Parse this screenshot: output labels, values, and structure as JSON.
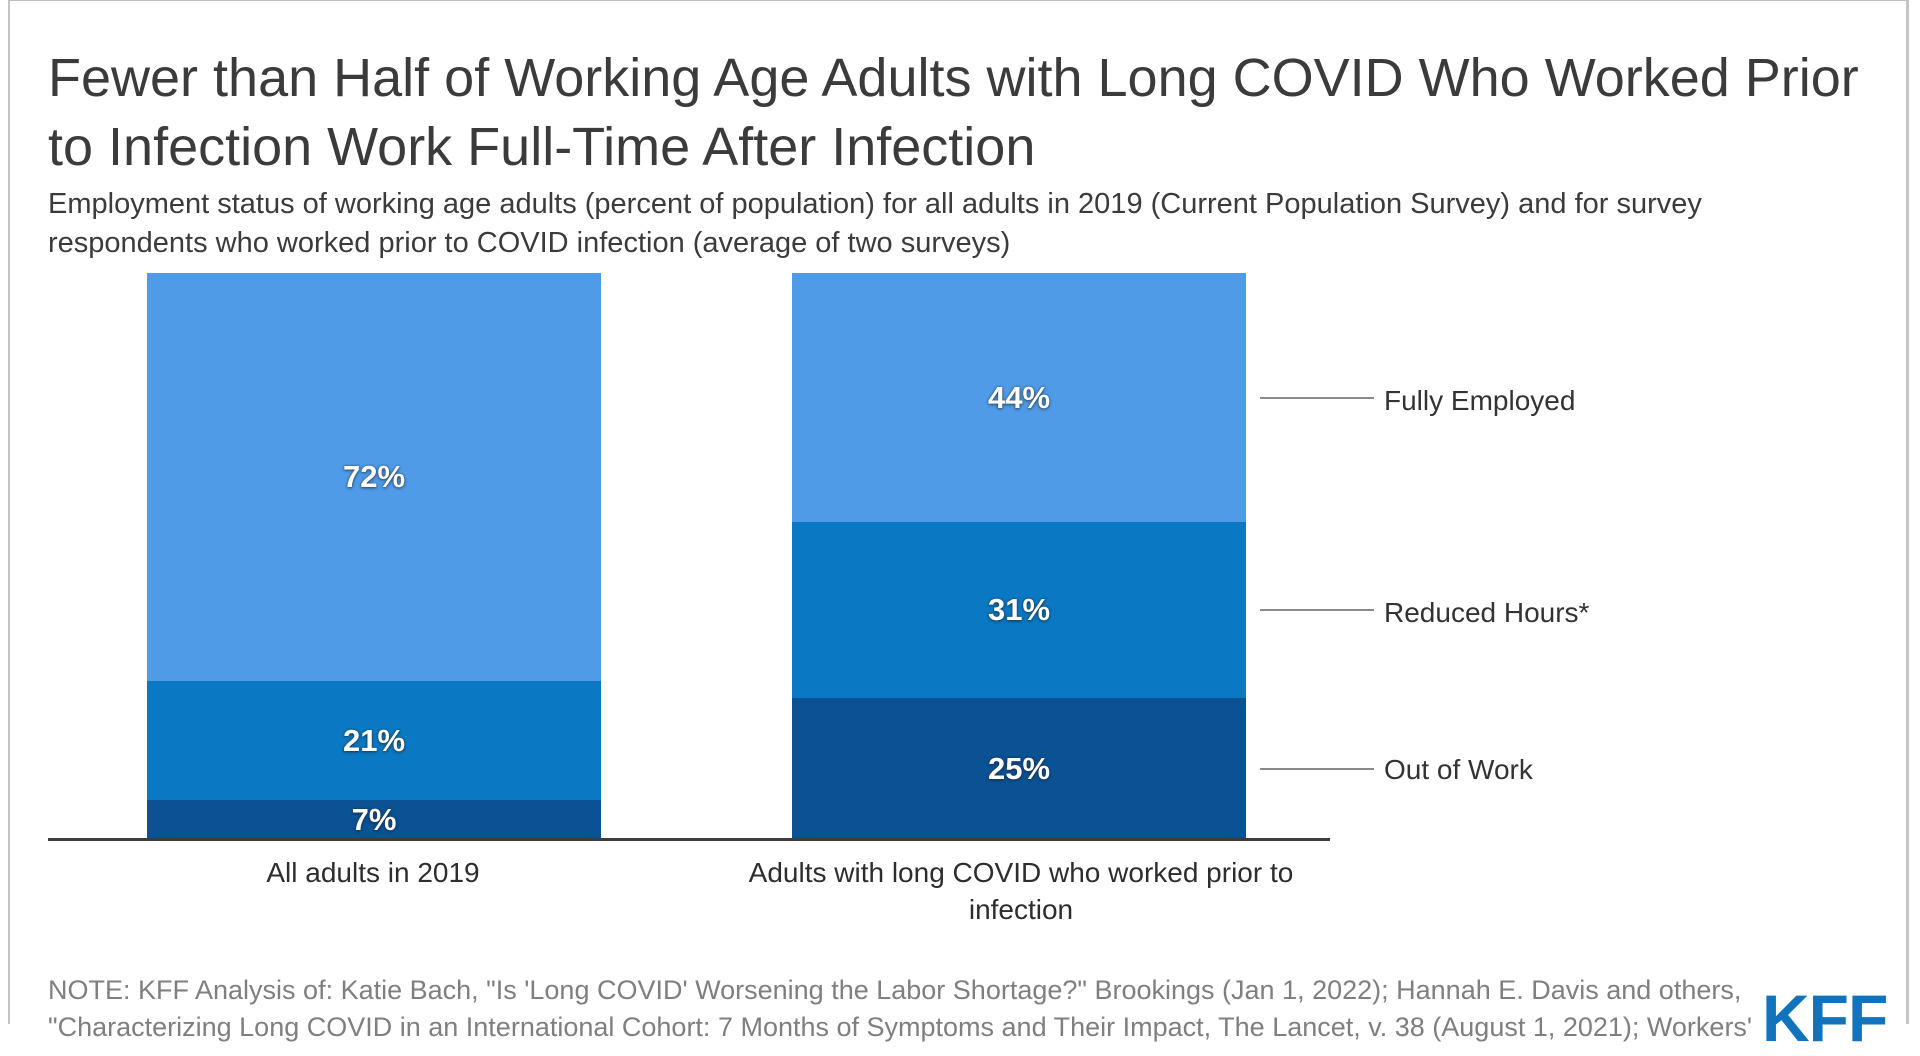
{
  "header": {
    "title": "Fewer than Half of Working Age Adults with Long COVID Who Worked Prior to Infection Work Full-Time After Infection",
    "subtitle": "Employment status of working age adults (percent of population) for all adults in 2019 (Current Population Survey) and for survey respondents who worked prior to COVID infection (average of two surveys)"
  },
  "chart_data": {
    "type": "bar",
    "stacked": true,
    "orientation": "vertical",
    "unit": "%",
    "ylim": [
      0,
      100
    ],
    "grid": false,
    "legend_position": "right",
    "value_labels": "inside segments, white bold, percent suffix",
    "categories": [
      "All adults in 2019",
      "Adults with long COVID who worked prior to infection"
    ],
    "series": [
      {
        "name": "Fully Employed",
        "color": "#4f9be8",
        "values": [
          72,
          44
        ]
      },
      {
        "name": "Reduced Hours*",
        "color": "#0a78c2",
        "values": [
          21,
          31
        ]
      },
      {
        "name": "Out of Work",
        "color": "#0b5295",
        "values": [
          7,
          25
        ]
      }
    ]
  },
  "footer": {
    "note_line1": "NOTE: KFF Analysis of: Katie Bach, \"Is 'Long COVID' Worsening the Labor Shortage?\" Brookings (Jan 1, 2022); Hannah E. Davis and others,",
    "note_line2": "\"Characterizing Long COVID in an International Cohort: 7 Months of Symptoms and Their Impact, The Lancet, v. 38 (August 1, 2021); Workers'",
    "logo_text": "KFF",
    "logo_color": "#1173bc"
  },
  "style_colors": {
    "axis_line": "#3d3d3d",
    "leader_line": "#8a8a8a",
    "note_text": "#7f7f7f",
    "title_text": "#3b3b3b",
    "card_border": "#c4c4c4"
  }
}
